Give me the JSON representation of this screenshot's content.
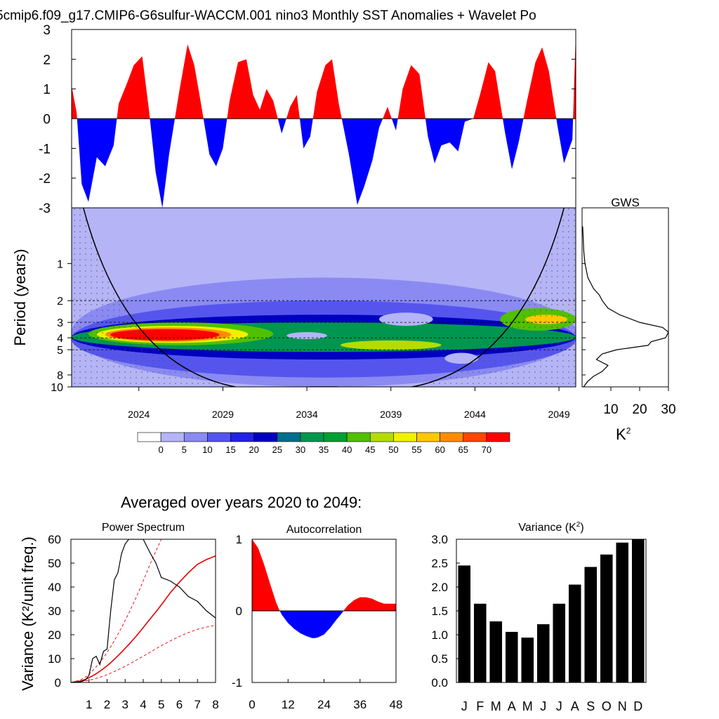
{
  "title": "5cmip6.f09_g17.CMIP6-G6sulfur-WACCM.001 nino3 Monthly SST Anomalies + Wavelet Po",
  "averaged_title": "Averaged over years 2020 to 2049:",
  "gws_unit_label": "K",
  "gws_unit_sup": "2",
  "colors": {
    "positive": "#ff0000",
    "negative": "#0000ff",
    "bar": "#000000",
    "sig_curve": "#e60000"
  },
  "chart_data": [
    {
      "type": "area",
      "panel": "sst-anomaly",
      "ylim": [
        -3,
        3
      ],
      "yticks": [
        "3",
        "2",
        "1",
        "0",
        "-1",
        "-2",
        "-3"
      ],
      "xlim": [
        2020,
        2050
      ],
      "x": [
        2020.0,
        2020.3,
        2020.6,
        2021.0,
        2021.5,
        2022.0,
        2022.5,
        2022.8,
        2023.3,
        2023.7,
        2024.2,
        2024.6,
        2025.0,
        2025.4,
        2025.8,
        2026.4,
        2026.9,
        2027.3,
        2027.7,
        2028.2,
        2028.6,
        2029.0,
        2029.4,
        2029.9,
        2030.4,
        2030.8,
        2031.2,
        2031.6,
        2032.0,
        2032.5,
        2033.0,
        2033.4,
        2033.8,
        2034.2,
        2034.6,
        2035.1,
        2035.5,
        2035.9,
        2036.5,
        2037.0,
        2037.4,
        2037.9,
        2038.3,
        2038.8,
        2039.3,
        2039.7,
        2040.2,
        2040.7,
        2041.2,
        2041.6,
        2042.0,
        2042.5,
        2043.0,
        2043.4,
        2043.9,
        2044.3,
        2044.8,
        2045.2,
        2045.8,
        2046.2,
        2046.6,
        2047.1,
        2047.6,
        2048.0,
        2048.4,
        2048.9,
        2049.3,
        2049.8,
        2050.0
      ],
      "y": [
        1.1,
        0.2,
        -2.2,
        -2.8,
        -1.3,
        -1.6,
        -0.9,
        0.5,
        1.2,
        1.8,
        2.1,
        0.3,
        -1.8,
        -3.0,
        -1.2,
        0.9,
        2.5,
        1.8,
        0.5,
        -1.2,
        -1.6,
        -1.0,
        0.6,
        1.9,
        2.0,
        0.8,
        0.3,
        1.0,
        0.6,
        -0.5,
        0.4,
        0.8,
        -1.0,
        -0.6,
        0.9,
        1.8,
        2.0,
        0.5,
        -1.2,
        -2.9,
        -2.3,
        -1.4,
        -0.3,
        0.4,
        -0.4,
        1.0,
        1.8,
        1.5,
        -0.6,
        -1.5,
        -0.9,
        -0.8,
        -1.1,
        -0.1,
        0.0,
        0.8,
        1.9,
        1.6,
        -0.5,
        -1.7,
        -0.8,
        0.6,
        1.9,
        2.4,
        1.6,
        -0.2,
        -1.5,
        -0.7,
        2.9
      ]
    },
    {
      "type": "heatmap",
      "panel": "wavelet-power",
      "ylabel": "Period (years)",
      "yticks": [
        "1",
        "2",
        "3",
        "4",
        "5",
        "8",
        "10"
      ],
      "xticks": [
        "2024",
        "2029",
        "2034",
        "2039",
        "2044",
        "2049"
      ],
      "colorbar_labels": [
        "0",
        "5",
        "10",
        "15",
        "20",
        "25",
        "30",
        "35",
        "40",
        "45",
        "50",
        "55",
        "60",
        "65",
        "70"
      ],
      "colorbar_colors": [
        "#ffffff",
        "#b4b4f7",
        "#8a8af2",
        "#5555ee",
        "#2222e6",
        "#0000c0",
        "#006e8c",
        "#009650",
        "#00a030",
        "#50c000",
        "#b4dc00",
        "#f0f000",
        "#ffc800",
        "#ff8c00",
        "#ff4600",
        "#ff0000"
      ],
      "max_power_period": 3.6,
      "max_power_year": 2026
    },
    {
      "type": "line",
      "panel": "global-wavelet-spectrum",
      "title": "GWS",
      "xticks": [
        "10",
        "20",
        "30"
      ],
      "xlim": [
        0,
        30
      ],
      "periods": [
        0.5,
        0.8,
        1.0,
        1.3,
        1.6,
        1.8,
        2.0,
        2.3,
        2.6,
        3.0,
        3.3,
        3.6,
        4.0,
        4.3,
        4.6,
        5.0,
        5.4,
        6.0,
        6.7,
        7.5,
        8.2,
        9.0,
        10.0
      ],
      "power": [
        0.2,
        0.6,
        1.0,
        2.0,
        4.0,
        6.0,
        7.0,
        9.0,
        13.0,
        20.0,
        28.0,
        30.0,
        29.0,
        24.0,
        23.0,
        12.0,
        7.0,
        5.0,
        9.0,
        7.0,
        4.0,
        2.0,
        0.5
      ]
    },
    {
      "type": "line",
      "panel": "power-spectrum",
      "title": "Power Spectrum",
      "ylabel": "Variance (K²/unit freq.)",
      "xlim": [
        0,
        8
      ],
      "ylim": [
        0,
        60
      ],
      "xticks": [
        "1",
        "2",
        "3",
        "4",
        "5",
        "6",
        "7",
        "8"
      ],
      "yticks": [
        "0",
        "10",
        "20",
        "30",
        "40",
        "50",
        "60"
      ],
      "x": [
        0.0,
        0.5,
        0.8,
        1.0,
        1.2,
        1.4,
        1.6,
        1.8,
        2.0,
        2.2,
        2.4,
        2.6,
        2.8,
        3.0,
        3.2,
        3.6,
        4.0,
        4.4,
        4.7,
        5.0,
        5.5,
        6.0,
        6.5,
        7.0,
        7.5,
        8.0
      ],
      "spectrum": [
        0.0,
        0.3,
        1.0,
        3.0,
        10.0,
        11.0,
        7.5,
        13.0,
        14.0,
        30.0,
        43.0,
        46.0,
        54.0,
        58.0,
        60.0,
        60.0,
        60.0,
        54.0,
        50.0,
        44.0,
        42.5,
        40.0,
        36.0,
        34.0,
        30.0,
        27.0
      ],
      "red_noise": [
        0.0,
        0.6,
        1.3,
        2.0,
        2.8,
        3.7,
        4.7,
        5.8,
        7.0,
        8.3,
        9.7,
        11.2,
        12.7,
        14.3,
        15.9,
        19.3,
        23.0,
        26.8,
        29.6,
        32.5,
        37.6,
        42.0,
        46.0,
        49.5,
        51.5,
        53.0
      ],
      "upper_conf": [
        0.0,
        1.0,
        2.2,
        3.5,
        5.0,
        6.6,
        8.4,
        10.4,
        12.6,
        15.0,
        17.5,
        20.2,
        23.0,
        26.0,
        29.0,
        35.5,
        42.5,
        50.0,
        55.0,
        60.0,
        60.0,
        60.0,
        60.0,
        60.0,
        60.0,
        60.0
      ],
      "lower_conf": [
        0.0,
        0.3,
        0.6,
        0.9,
        1.3,
        1.7,
        2.2,
        2.7,
        3.3,
        3.9,
        4.6,
        5.3,
        6.0,
        6.8,
        7.6,
        9.3,
        11.0,
        12.8,
        14.1,
        15.4,
        17.4,
        19.3,
        20.9,
        22.3,
        23.2,
        24.0
      ]
    },
    {
      "type": "area",
      "panel": "autocorrelation",
      "title": "Autocorrelation",
      "xlim": [
        0,
        48
      ],
      "ylim": [
        -1,
        1
      ],
      "xticks": [
        "0",
        "12",
        "24",
        "36",
        "48"
      ],
      "yticks": [
        "1",
        "0",
        "-1"
      ],
      "x": [
        0,
        2,
        4,
        6,
        8,
        9,
        10,
        12,
        14,
        16,
        18,
        20,
        21,
        22,
        24,
        26,
        28,
        30,
        31,
        32,
        34,
        36,
        38,
        40,
        42,
        44,
        46,
        48
      ],
      "y": [
        1.0,
        0.88,
        0.65,
        0.38,
        0.12,
        0.02,
        -0.06,
        -0.17,
        -0.25,
        -0.31,
        -0.35,
        -0.38,
        -0.38,
        -0.37,
        -0.33,
        -0.24,
        -0.13,
        -0.03,
        0.03,
        0.08,
        0.15,
        0.19,
        0.19,
        0.17,
        0.13,
        0.1,
        0.1,
        0.1
      ]
    },
    {
      "type": "bar",
      "panel": "monthly-variance",
      "title": "Variance (K",
      "title_sup": "2",
      "title_end": ")",
      "ylim": [
        0,
        3
      ],
      "yticks": [
        "3.0",
        "2.5",
        "2.0",
        "1.5",
        "1.0",
        "0.5",
        "0.0"
      ],
      "categories": [
        "J",
        "F",
        "M",
        "A",
        "M",
        "J",
        "J",
        "A",
        "S",
        "O",
        "N",
        "D"
      ],
      "values": [
        2.45,
        1.65,
        1.28,
        1.06,
        0.94,
        1.22,
        1.65,
        2.05,
        2.42,
        2.68,
        2.93,
        3.0
      ]
    }
  ]
}
